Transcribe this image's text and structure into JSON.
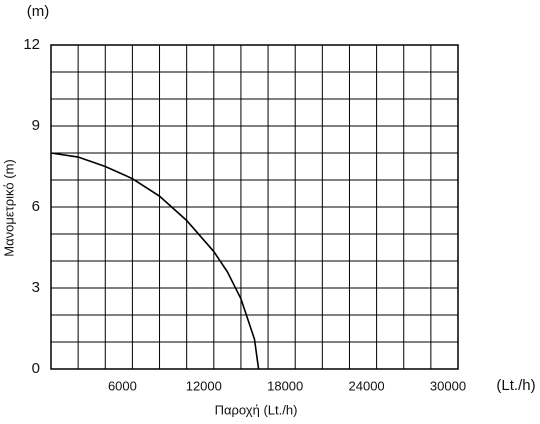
{
  "chart_data": {
    "type": "line",
    "y_unit": "(m)",
    "x_unit": "(Lt./h)",
    "xlabel": "Παροχή (Lt./h)",
    "ylabel": "Μανομετρικό (m)",
    "xlim": [
      0,
      30000
    ],
    "ylim": [
      0,
      12
    ],
    "xticks": [
      6000,
      12000,
      18000,
      24000,
      30000
    ],
    "yticks": [
      0,
      3,
      6,
      9,
      12
    ],
    "xgrid": [
      0,
      2000,
      4000,
      6000,
      8000,
      10000,
      12000,
      14000,
      16000,
      18000,
      20000,
      22000,
      24000,
      26000,
      28000,
      30000
    ],
    "ygrid": [
      0,
      1,
      2,
      3,
      4,
      5,
      6,
      7,
      8,
      9,
      10,
      11,
      12
    ],
    "grid": true,
    "series": [
      {
        "color": "#000000",
        "x": [
          0,
          2000,
          4000,
          6000,
          8000,
          10000,
          12000,
          13000,
          14000,
          15000,
          15300
        ],
        "values": [
          8,
          7.85,
          7.5,
          7.05,
          6.4,
          5.5,
          4.35,
          3.6,
          2.6,
          1.1,
          0
        ]
      }
    ]
  }
}
